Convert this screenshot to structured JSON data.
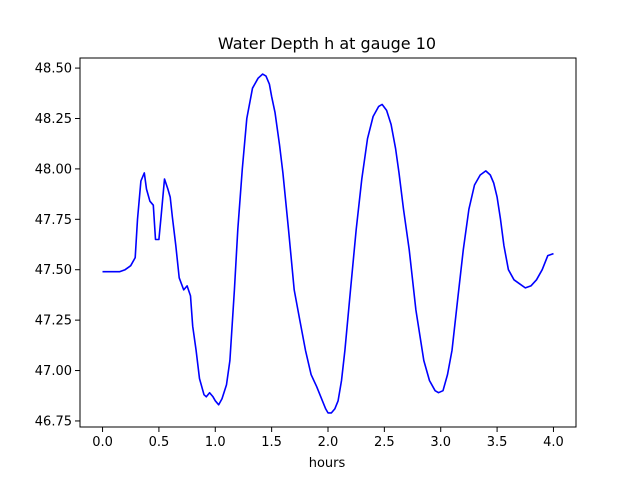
{
  "chart_data": {
    "type": "line",
    "title": "Water Depth h at gauge 10",
    "xlabel": "hours",
    "ylabel": "",
    "xlim": [
      -0.2,
      4.2
    ],
    "ylim": [
      46.72,
      48.55
    ],
    "xticks": [
      0.0,
      0.5,
      1.0,
      1.5,
      2.0,
      2.5,
      3.0,
      3.5,
      4.0
    ],
    "xtick_labels": [
      "0.0",
      "0.5",
      "1.0",
      "1.5",
      "2.0",
      "2.5",
      "3.0",
      "3.5",
      "4.0"
    ],
    "yticks": [
      46.75,
      47.0,
      47.25,
      47.5,
      47.75,
      48.0,
      48.25,
      48.5
    ],
    "ytick_labels": [
      "46.75",
      "47.00",
      "47.25",
      "47.50",
      "47.75",
      "48.00",
      "48.25",
      "48.50"
    ],
    "grid": false,
    "series": [
      {
        "color": "#0000ff",
        "x": [
          0.0,
          0.05,
          0.1,
          0.15,
          0.2,
          0.25,
          0.29,
          0.31,
          0.34,
          0.37,
          0.39,
          0.42,
          0.45,
          0.47,
          0.5,
          0.52,
          0.55,
          0.58,
          0.6,
          0.62,
          0.65,
          0.68,
          0.72,
          0.75,
          0.78,
          0.8,
          0.83,
          0.86,
          0.9,
          0.92,
          0.95,
          0.98,
          1.0,
          1.03,
          1.06,
          1.1,
          1.13,
          1.17,
          1.2,
          1.24,
          1.28,
          1.33,
          1.38,
          1.42,
          1.45,
          1.48,
          1.5,
          1.53,
          1.57,
          1.6,
          1.65,
          1.7,
          1.75,
          1.8,
          1.85,
          1.9,
          1.95,
          1.98,
          2.0,
          2.03,
          2.06,
          2.09,
          2.12,
          2.15,
          2.2,
          2.25,
          2.3,
          2.35,
          2.4,
          2.45,
          2.48,
          2.52,
          2.56,
          2.6,
          2.63,
          2.67,
          2.72,
          2.78,
          2.85,
          2.9,
          2.95,
          2.98,
          3.02,
          3.06,
          3.1,
          3.15,
          3.2,
          3.25,
          3.3,
          3.35,
          3.4,
          3.44,
          3.47,
          3.5,
          3.53,
          3.56,
          3.6,
          3.65,
          3.7,
          3.75,
          3.8,
          3.85,
          3.9,
          3.95,
          4.0
        ],
        "y": [
          47.49,
          47.49,
          47.49,
          47.49,
          47.5,
          47.52,
          47.56,
          47.75,
          47.94,
          47.98,
          47.9,
          47.84,
          47.82,
          47.65,
          47.65,
          47.77,
          47.95,
          47.9,
          47.86,
          47.76,
          47.62,
          47.46,
          47.4,
          47.42,
          47.37,
          47.22,
          47.1,
          46.96,
          46.88,
          46.87,
          46.89,
          46.87,
          46.85,
          46.83,
          46.86,
          46.93,
          47.05,
          47.4,
          47.7,
          48.0,
          48.25,
          48.4,
          48.45,
          48.47,
          48.46,
          48.42,
          48.36,
          48.28,
          48.12,
          47.98,
          47.7,
          47.4,
          47.25,
          47.1,
          46.98,
          46.92,
          46.85,
          46.81,
          46.79,
          46.79,
          46.81,
          46.85,
          46.95,
          47.1,
          47.4,
          47.7,
          47.95,
          48.15,
          48.26,
          48.31,
          48.32,
          48.29,
          48.22,
          48.1,
          47.98,
          47.8,
          47.6,
          47.3,
          47.05,
          46.95,
          46.9,
          46.89,
          46.9,
          46.98,
          47.1,
          47.35,
          47.6,
          47.8,
          47.92,
          47.97,
          47.99,
          47.97,
          47.93,
          47.86,
          47.75,
          47.62,
          47.5,
          47.45,
          47.43,
          47.41,
          47.42,
          47.45,
          47.5,
          47.57,
          47.58
        ]
      }
    ]
  }
}
